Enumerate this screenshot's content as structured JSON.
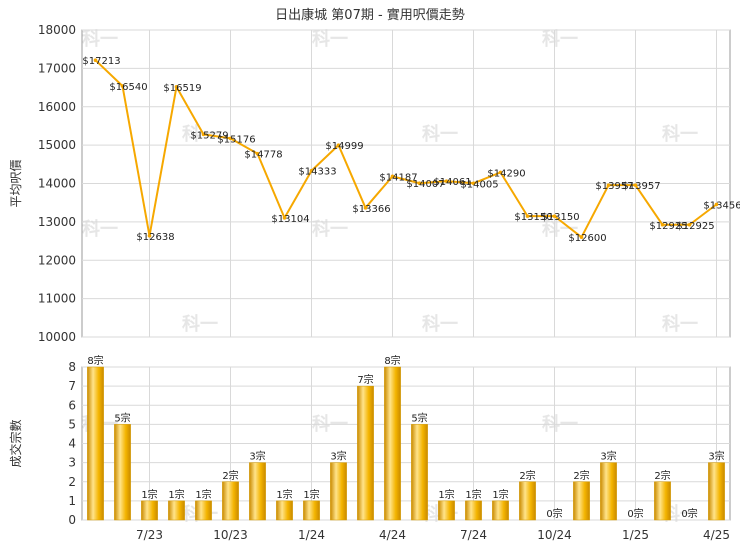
{
  "title": "日出康城 第07期 - 實用呎價走勢",
  "watermark": "科一",
  "colors": {
    "line": "#f6a800",
    "bar_light": "#ffe38a",
    "bar_mid": "#f4b400",
    "bar_dark": "#c98a00",
    "grid": "#d9d9d9",
    "axis": "#999999"
  },
  "chart_data": [
    {
      "type": "line",
      "title": "日出康城 第07期 - 實用呎價走勢",
      "ylabel": "平均呎價",
      "ylim": [
        10000,
        18000
      ],
      "yticks": [
        10000,
        11000,
        12000,
        13000,
        14000,
        15000,
        16000,
        17000,
        18000
      ],
      "xtick_labels": [
        "7/23",
        "10/23",
        "1/24",
        "4/24",
        "7/24",
        "10/24",
        "1/25",
        "4/25"
      ],
      "grid": true,
      "points": [
        {
          "label": "$17213",
          "value": 17213
        },
        {
          "label": "$16540",
          "value": 16540
        },
        {
          "label": "$12638",
          "value": 12638
        },
        {
          "label": "$16519",
          "value": 16519
        },
        {
          "label": "$15279",
          "value": 15279
        },
        {
          "label": "$15176",
          "value": 15176
        },
        {
          "label": "$14778",
          "value": 14778
        },
        {
          "label": "$13104",
          "value": 13104
        },
        {
          "label": "$14333",
          "value": 14333
        },
        {
          "label": "$14999",
          "value": 14999
        },
        {
          "label": "$13366",
          "value": 13366
        },
        {
          "label": "$14187",
          "value": 14187
        },
        {
          "label": "$14007",
          "value": 14007
        },
        {
          "label": "$14061",
          "value": 14061
        },
        {
          "label": "$14005",
          "value": 14005
        },
        {
          "label": "$14290",
          "value": 14290
        },
        {
          "label": "$13150",
          "value": 13150
        },
        {
          "label": "$13150",
          "value": 13150
        },
        {
          "label": "$12600",
          "value": 12600
        },
        {
          "label": "$13957",
          "value": 13957
        },
        {
          "label": "$13957",
          "value": 13957
        },
        {
          "label": "$12925",
          "value": 12925
        },
        {
          "label": "$12925",
          "value": 12925
        },
        {
          "label": "$13456",
          "value": 13456
        }
      ]
    },
    {
      "type": "bar",
      "ylabel": "成交宗數",
      "ylim": [
        0,
        8
      ],
      "yticks": [
        0,
        1,
        2,
        3,
        4,
        5,
        6,
        7,
        8
      ],
      "xtick_labels": [
        "7/23",
        "10/23",
        "1/24",
        "4/24",
        "7/24",
        "10/24",
        "1/25",
        "4/25"
      ],
      "grid": true,
      "bars": [
        {
          "label": "8宗",
          "value": 8
        },
        {
          "label": "5宗",
          "value": 5
        },
        {
          "label": "1宗",
          "value": 1
        },
        {
          "label": "1宗",
          "value": 1
        },
        {
          "label": "1宗",
          "value": 1
        },
        {
          "label": "2宗",
          "value": 2
        },
        {
          "label": "3宗",
          "value": 3
        },
        {
          "label": "1宗",
          "value": 1
        },
        {
          "label": "1宗",
          "value": 1
        },
        {
          "label": "3宗",
          "value": 3
        },
        {
          "label": "7宗",
          "value": 7
        },
        {
          "label": "8宗",
          "value": 8
        },
        {
          "label": "5宗",
          "value": 5
        },
        {
          "label": "1宗",
          "value": 1
        },
        {
          "label": "1宗",
          "value": 1
        },
        {
          "label": "1宗",
          "value": 1
        },
        {
          "label": "2宗",
          "value": 2
        },
        {
          "label": "0宗",
          "value": 0
        },
        {
          "label": "2宗",
          "value": 2
        },
        {
          "label": "3宗",
          "value": 3
        },
        {
          "label": "0宗",
          "value": 0
        },
        {
          "label": "2宗",
          "value": 2
        },
        {
          "label": "0宗",
          "value": 0
        },
        {
          "label": "3宗",
          "value": 3
        }
      ]
    }
  ]
}
